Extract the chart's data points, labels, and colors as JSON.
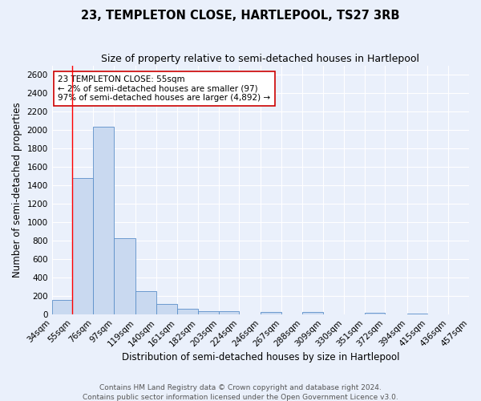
{
  "title": "23, TEMPLETON CLOSE, HARTLEPOOL, TS27 3RB",
  "subtitle": "Size of property relative to semi-detached houses in Hartlepool",
  "xlabel": "Distribution of semi-detached houses by size in Hartlepool",
  "ylabel": "Number of semi-detached properties",
  "footer1": "Contains HM Land Registry data © Crown copyright and database right 2024.",
  "footer2": "Contains public sector information licensed under the Open Government Licence v3.0.",
  "annotation_title": "23 TEMPLETON CLOSE: 55sqm",
  "annotation_line2": "← 2% of semi-detached houses are smaller (97)",
  "annotation_line3": "97% of semi-detached houses are larger (4,892) →",
  "property_size": 55,
  "bar_edges": [
    34,
    55,
    76,
    97,
    119,
    140,
    161,
    182,
    203,
    224,
    246,
    267,
    288,
    309,
    330,
    351,
    372,
    394,
    415,
    436,
    457
  ],
  "bar_values": [
    155,
    1480,
    2040,
    830,
    250,
    115,
    65,
    40,
    35,
    0,
    30,
    0,
    25,
    0,
    0,
    20,
    0,
    15,
    0,
    0
  ],
  "bar_color": "#c9d9f0",
  "bar_edge_color": "#5b8fc9",
  "red_line_x": 55,
  "ylim": [
    0,
    2700
  ],
  "yticks": [
    0,
    200,
    400,
    600,
    800,
    1000,
    1200,
    1400,
    1600,
    1800,
    2000,
    2200,
    2400,
    2600
  ],
  "bg_color": "#eaf0fb",
  "plot_bg_color": "#eaf0fb",
  "grid_color": "#ffffff",
  "annotation_box_color": "#ffffff",
  "annotation_box_edge": "#cc0000",
  "title_fontsize": 10.5,
  "subtitle_fontsize": 9,
  "axis_label_fontsize": 8.5,
  "tick_fontsize": 7.5,
  "annotation_fontsize": 7.5,
  "footer_fontsize": 6.5
}
